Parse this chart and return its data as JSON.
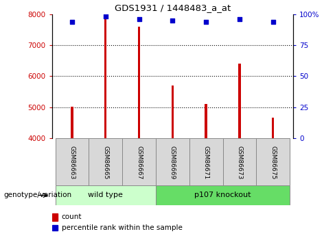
{
  "title": "GDS1931 / 1448483_a_at",
  "samples": [
    "GSM86663",
    "GSM86665",
    "GSM86667",
    "GSM86669",
    "GSM86671",
    "GSM86673",
    "GSM86675"
  ],
  "count_values": [
    5020,
    7880,
    7600,
    5700,
    5100,
    6400,
    4660
  ],
  "percentile_values": [
    94,
    98,
    96,
    95,
    94,
    96,
    94
  ],
  "ylim_left": [
    4000,
    8000
  ],
  "ylim_right": [
    0,
    100
  ],
  "yticks_left": [
    4000,
    5000,
    6000,
    7000,
    8000
  ],
  "yticks_right": [
    0,
    25,
    50,
    75,
    100
  ],
  "ytick_labels_right": [
    "0",
    "25",
    "50",
    "75",
    "100%"
  ],
  "bar_color": "#cc0000",
  "dot_color": "#0000cc",
  "grid_color": "#000000",
  "wild_type_indices": [
    0,
    1,
    2
  ],
  "knockout_indices": [
    3,
    4,
    5,
    6
  ],
  "wild_type_label": "wild type",
  "knockout_label": "p107 knockout",
  "group_label": "genotype/variation",
  "legend_bar_label": "count",
  "legend_dot_label": "percentile rank within the sample",
  "wild_type_color": "#ccffcc",
  "knockout_color": "#66dd66",
  "label_box_color": "#d8d8d8",
  "bar_width": 0.07,
  "base_value": 4000
}
